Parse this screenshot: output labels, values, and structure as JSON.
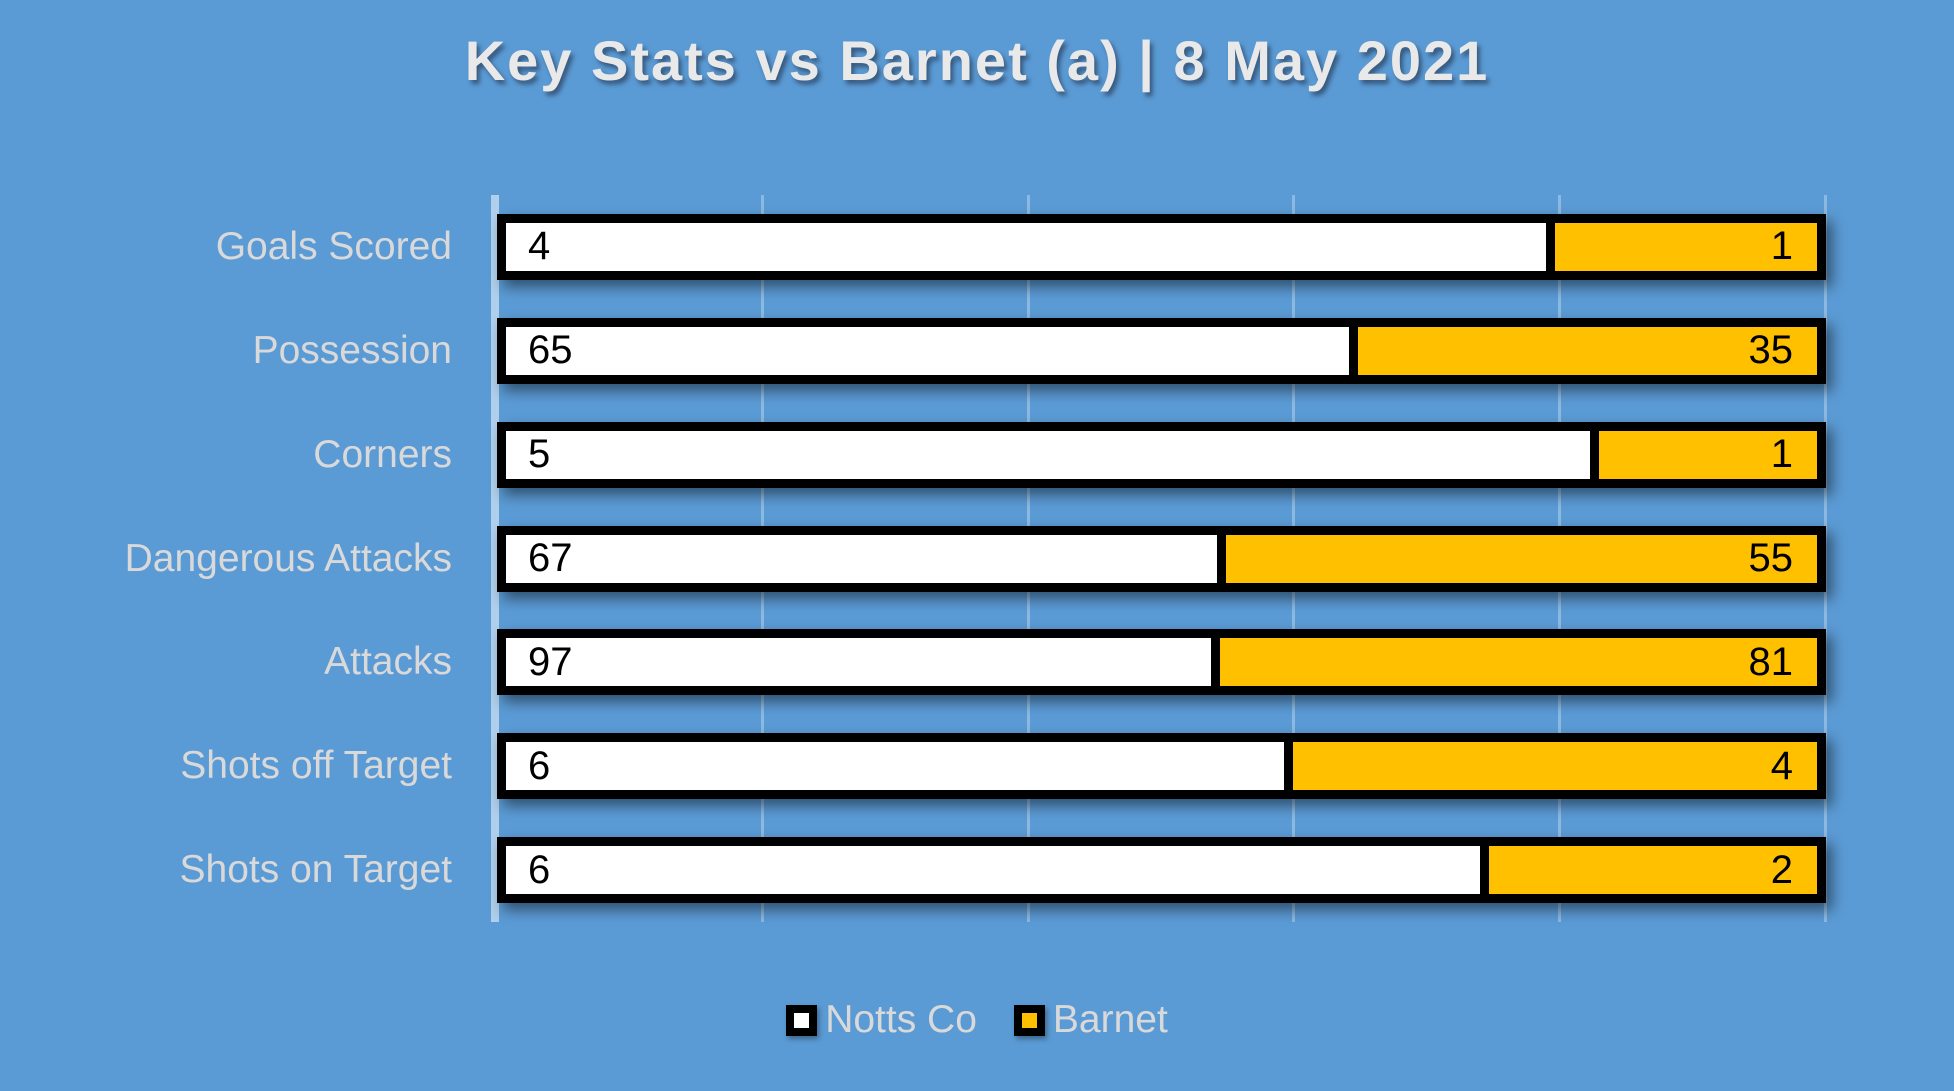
{
  "title": "Key Stats vs Barnet (a) | 8 May 2021",
  "legend": {
    "items": [
      {
        "label": "Notts Co",
        "swatch": "white-filled-square"
      },
      {
        "label": "Barnet",
        "swatch": "gold-filled-square"
      }
    ]
  },
  "colors": {
    "background": "#5B9BD5",
    "notts_fill": "#FFFFFF",
    "barnet_fill": "#FFC000",
    "bar_border": "#000000",
    "label_text": "#D9D9D9",
    "title_text": "#E9E9E9",
    "value_text": "#000000"
  },
  "chart_data": {
    "type": "bar",
    "orientation": "horizontal",
    "stacking": "100%",
    "title": "Key Stats vs Barnet (a) | 8 May 2021",
    "categories": [
      "Goals Scored",
      "Possession",
      "Corners",
      "Dangerous Attacks",
      "Attacks",
      "Shots off Target",
      "Shots on Target"
    ],
    "series": [
      {
        "name": "Notts Co",
        "color": "#FFFFFF",
        "values": [
          4,
          65,
          5,
          67,
          97,
          6,
          6
        ]
      },
      {
        "name": "Barnet",
        "color": "#FFC000",
        "values": [
          1,
          35,
          1,
          55,
          81,
          4,
          2
        ]
      }
    ],
    "value_labels": "inside-ends",
    "gridlines": {
      "axis": "x",
      "interval_percent": 20,
      "visible": true
    },
    "legend_position": "bottom",
    "category_axis_side": "left"
  }
}
